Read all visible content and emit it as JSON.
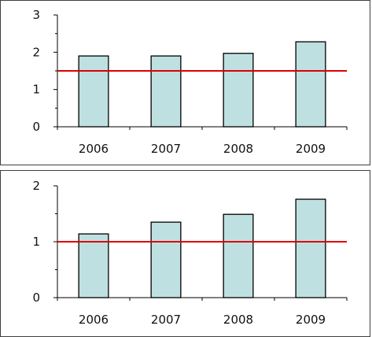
{
  "chart_data": [
    {
      "type": "bar",
      "categories": [
        "2006",
        "2007",
        "2008",
        "2009"
      ],
      "values": [
        1.9,
        1.9,
        1.97,
        2.28
      ],
      "reference_line": 1.5,
      "ylim": [
        0,
        3
      ],
      "yticks": [
        "0",
        "1",
        "2",
        "3"
      ],
      "grid": false,
      "title": "",
      "xlabel": "",
      "ylabel": ""
    },
    {
      "type": "bar",
      "categories": [
        "2006",
        "2007",
        "2008",
        "2009"
      ],
      "values": [
        1.14,
        1.35,
        1.49,
        1.76
      ],
      "reference_line": 1.0,
      "ylim": [
        0,
        2
      ],
      "yticks": [
        "0",
        "1",
        "2"
      ],
      "grid": false,
      "title": "",
      "xlabel": "",
      "ylabel": ""
    }
  ],
  "colors": {
    "bar_fill": "#bfe0e0",
    "bar_stroke": "#000000",
    "reference_line": "#e00000",
    "axis": "#000000"
  }
}
